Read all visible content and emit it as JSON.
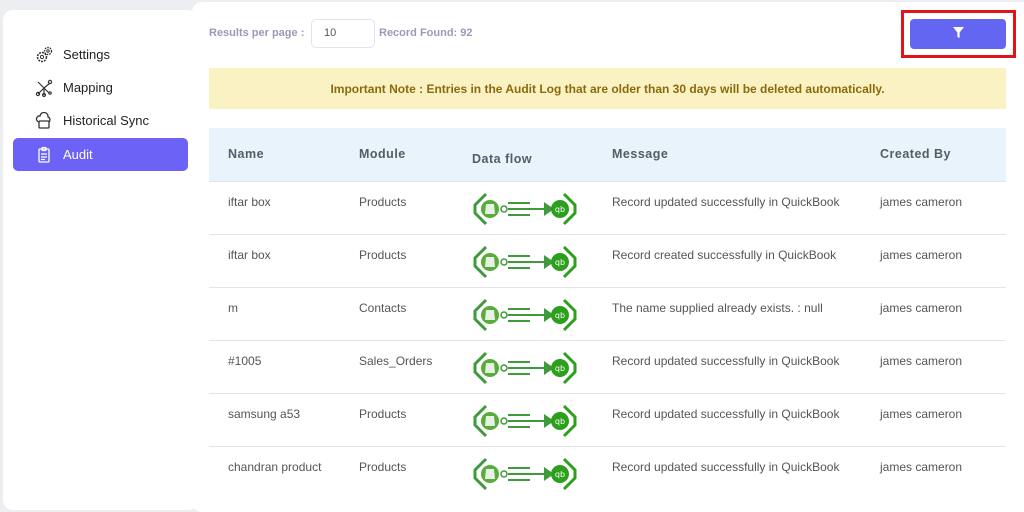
{
  "sidebar": {
    "items": [
      {
        "label": "Settings",
        "icon": "gear-icon"
      },
      {
        "label": "Mapping",
        "icon": "network-icon"
      },
      {
        "label": "Historical Sync",
        "icon": "cloud-sync-icon"
      },
      {
        "label": "Audit",
        "icon": "clipboard-icon",
        "active": true
      }
    ]
  },
  "toolbar": {
    "results_per_page_label": "Results per page :",
    "results_per_page_value": "10",
    "record_found": "Record Found: 92",
    "filter_icon": "filter-icon"
  },
  "note": "Important Note : Entries in the Audit Log that are older than 30 days will be deleted automatically.",
  "table": {
    "headers": [
      "Name",
      "Module",
      "Data flow",
      "Message",
      "Created By"
    ],
    "rows": [
      {
        "name": "iftar box",
        "module": "Products",
        "message": "Record updated successfully in QuickBook",
        "created_by": "james cameron"
      },
      {
        "name": "iftar box",
        "module": "Products",
        "message": "Record created successfully in QuickBook",
        "created_by": "james cameron"
      },
      {
        "name": "m",
        "module": "Contacts",
        "message": "The name supplied already exists. : null",
        "created_by": "james cameron"
      },
      {
        "name": "#1005",
        "module": "Sales_Orders",
        "message": "Record updated successfully in QuickBook",
        "created_by": "james cameron"
      },
      {
        "name": "samsung a53",
        "module": "Products",
        "message": "Record updated successfully in QuickBook",
        "created_by": "james cameron"
      },
      {
        "name": "chandran product",
        "module": "Products",
        "message": "Record updated successfully in QuickBook",
        "created_by": "james cameron"
      }
    ]
  },
  "colors": {
    "accent": "#6366f1",
    "highlight": "#e0141a",
    "flow": "#3e9a3a"
  }
}
